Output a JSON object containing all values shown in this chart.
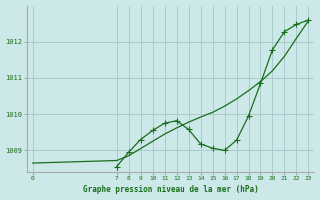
{
  "background_color": "#cce8e8",
  "grid_color": "#aacccc",
  "line_color": "#1a6e1a",
  "xlabel": "Graphe pression niveau de la mer (hPa)",
  "ylim": [
    1008.4,
    1013.0
  ],
  "yticks": [
    1009,
    1010,
    1011,
    1012
  ],
  "xticks": [
    0,
    7,
    8,
    9,
    10,
    11,
    12,
    13,
    14,
    15,
    16,
    17,
    18,
    19,
    20,
    21,
    22,
    23
  ],
  "xlim": [
    -0.5,
    23.5
  ],
  "line1_x": [
    0,
    7,
    8,
    9,
    10,
    11,
    12,
    13,
    14,
    15,
    16,
    17,
    18,
    19,
    20,
    21,
    22,
    23
  ],
  "line1_y": [
    1008.65,
    1008.72,
    1008.85,
    1009.05,
    1009.25,
    1009.45,
    1009.62,
    1009.78,
    1009.92,
    1010.05,
    1010.22,
    1010.42,
    1010.65,
    1010.9,
    1011.2,
    1011.6,
    1012.1,
    1012.58
  ],
  "line2_x": [
    7,
    8,
    9,
    10,
    11,
    12,
    13,
    14,
    15,
    16,
    17,
    18,
    19,
    20,
    21,
    22,
    23
  ],
  "line2_y": [
    1008.55,
    1008.95,
    1009.3,
    1009.55,
    1009.75,
    1009.82,
    1009.58,
    1009.18,
    1009.06,
    1009.0,
    1009.28,
    1009.95,
    1010.85,
    1011.78,
    1012.28,
    1012.48,
    1012.6
  ],
  "marker": "+",
  "markersize": 4,
  "linewidth": 0.9
}
